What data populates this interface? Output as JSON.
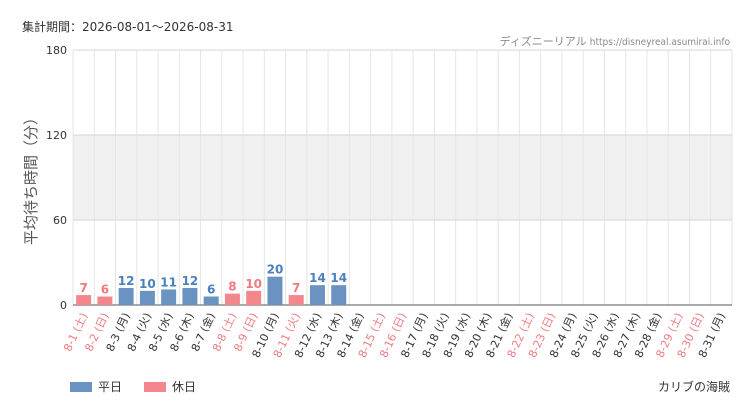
{
  "header": {
    "period_label": "集計期間：2026-08-01～2026-08-31",
    "site_name": "ディズニーリアル",
    "site_url": "https://disneyreal.asumirai.info"
  },
  "legend": {
    "weekday_label": "平日",
    "holiday_label": "休日"
  },
  "footer": {
    "attraction_name": "カリブの海賊"
  },
  "colors": {
    "weekday": "#6b93c2",
    "holiday": "#f4878d",
    "weekday_value_text": "#4a80bd",
    "holiday_value_text": "#f07a80",
    "band": "#f0f0f0"
  },
  "chart_data": {
    "type": "bar",
    "ylabel": "平均待ち時間（分）",
    "ylim": [
      0,
      180
    ],
    "yticks": [
      0,
      60,
      120,
      180
    ],
    "grid": true,
    "legend_position": "bottom-left",
    "categories": [
      "8-1 (土)",
      "8-2 (日)",
      "8-3 (月)",
      "8-4 (火)",
      "8-5 (水)",
      "8-6 (木)",
      "8-7 (金)",
      "8-8 (土)",
      "8-9 (日)",
      "8-10 (月)",
      "8-11 (火)",
      "8-12 (水)",
      "8-13 (木)",
      "8-14 (金)",
      "8-15 (土)",
      "8-16 (日)",
      "8-17 (月)",
      "8-18 (火)",
      "8-19 (水)",
      "8-20 (木)",
      "8-21 (金)",
      "8-22 (土)",
      "8-23 (日)",
      "8-24 (月)",
      "8-25 (火)",
      "8-26 (水)",
      "8-27 (木)",
      "8-28 (金)",
      "8-29 (土)",
      "8-30 (日)",
      "8-31 (月)"
    ],
    "day_type": [
      "holiday",
      "holiday",
      "weekday",
      "weekday",
      "weekday",
      "weekday",
      "weekday",
      "holiday",
      "holiday",
      "weekday",
      "holiday",
      "weekday",
      "weekday",
      "weekday",
      "holiday",
      "holiday",
      "weekday",
      "weekday",
      "weekday",
      "weekday",
      "weekday",
      "holiday",
      "holiday",
      "weekday",
      "weekday",
      "weekday",
      "weekday",
      "weekday",
      "holiday",
      "holiday",
      "weekday"
    ],
    "series": [
      {
        "name": "平日",
        "values": [
          null,
          null,
          12,
          10,
          11,
          12,
          6,
          null,
          null,
          20,
          null,
          14,
          14,
          null,
          null,
          null,
          null,
          null,
          null,
          null,
          null,
          null,
          null,
          null,
          null,
          null,
          null,
          null,
          null,
          null,
          null
        ]
      },
      {
        "name": "休日",
        "values": [
          7,
          6,
          null,
          null,
          null,
          null,
          null,
          8,
          10,
          null,
          7,
          null,
          null,
          null,
          null,
          null,
          null,
          null,
          null,
          null,
          null,
          null,
          null,
          null,
          null,
          null,
          null,
          null,
          null,
          null,
          null
        ]
      }
    ]
  }
}
